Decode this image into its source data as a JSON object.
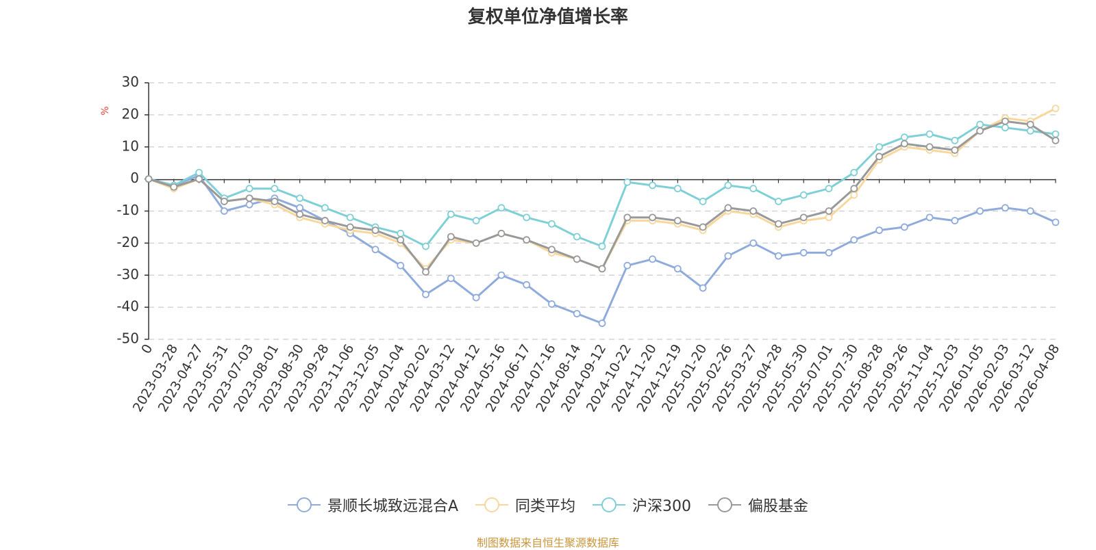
{
  "colors": {
    "jingshun": "#8fabdc",
    "peer_avg": "#f8d79c",
    "hs300": "#7fd0d6",
    "equity_bias": "#999999",
    "ylabel": "#e8403a",
    "source": "#c8963a",
    "grid": "#cccccc"
  },
  "source_note": "制图数据来自恒生聚源数据库",
  "chart_data": {
    "type": "line",
    "title": "复权单位净值增长率",
    "ylabel": "%",
    "ylim": [
      -50,
      30
    ],
    "yticks": [
      30,
      20,
      10,
      0,
      -10,
      -20,
      -30,
      -40,
      -50
    ],
    "x": [
      "0",
      "2023-03-28",
      "2023-04-27",
      "2023-05-31",
      "2023-07-03",
      "2023-08-01",
      "2023-08-30",
      "2023-09-28",
      "2023-11-06",
      "2023-12-05",
      "2024-01-04",
      "2024-02-02",
      "2024-03-12",
      "2024-04-12",
      "2024-05-16",
      "2024-06-17",
      "2024-07-16",
      "2024-08-14",
      "2024-09-12",
      "2024-10-22",
      "2024-11-20",
      "2024-12-19",
      "2025-01-20",
      "2025-02-26",
      "2025-03-27",
      "2025-04-28",
      "2025-05-30",
      "2025-07-01",
      "2025-07-30",
      "2025-08-28",
      "2025-09-26",
      "2025-11-04",
      "2025-12-03",
      "2026-01-05",
      "2026-02-03",
      "2026-03-12",
      "2026-04-08"
    ],
    "grid": true,
    "legend": "bottom",
    "series": [
      {
        "name": "景顺长城致远混合A",
        "color_key": "jingshun",
        "values": [
          0,
          -2,
          1,
          -10,
          -8,
          -6,
          -9,
          -13,
          -17,
          -22,
          -27,
          -36,
          -31,
          -37,
          -30,
          -33,
          -39,
          -42,
          -45,
          -27,
          -25,
          -28,
          -34,
          -24,
          -20,
          -24,
          -23,
          -23,
          -19,
          -16,
          -15,
          -12,
          -13,
          -10,
          -9,
          -10,
          -13.5
        ]
      },
      {
        "name": "同类平均",
        "color_key": "peer_avg",
        "values": [
          0,
          -3,
          0,
          -7,
          -6,
          -8,
          -12,
          -14,
          -16,
          -17,
          -20,
          -28,
          -19,
          -20,
          -17,
          -19,
          -23,
          -25,
          -28,
          -13,
          -13,
          -14,
          -16,
          -10,
          -11,
          -15,
          -13,
          -12,
          -5,
          6,
          10,
          9,
          8,
          15,
          19,
          18,
          22
        ]
      },
      {
        "name": "沪深300",
        "color_key": "hs300",
        "values": [
          0,
          -2,
          2,
          -6,
          -3,
          -3,
          -6,
          -9,
          -12,
          -15,
          -17,
          -21,
          -11,
          -13,
          -9,
          -12,
          -14,
          -18,
          -21,
          -1,
          -2,
          -3,
          -7,
          -2,
          -3,
          -7,
          -5,
          -3,
          2,
          10,
          13,
          14,
          12,
          17,
          16,
          15,
          14
        ]
      },
      {
        "name": "偏股基金",
        "color_key": "equity_bias",
        "values": [
          0,
          -2.5,
          0,
          -7,
          -6,
          -7,
          -11,
          -13,
          -15,
          -16,
          -19,
          -29,
          -18,
          -20,
          -17,
          -19,
          -22,
          -25,
          -28,
          -12,
          -12,
          -13,
          -15,
          -9,
          -10,
          -14,
          -12,
          -10,
          -3,
          7,
          11,
          10,
          9,
          15,
          18,
          17,
          12
        ]
      }
    ]
  }
}
